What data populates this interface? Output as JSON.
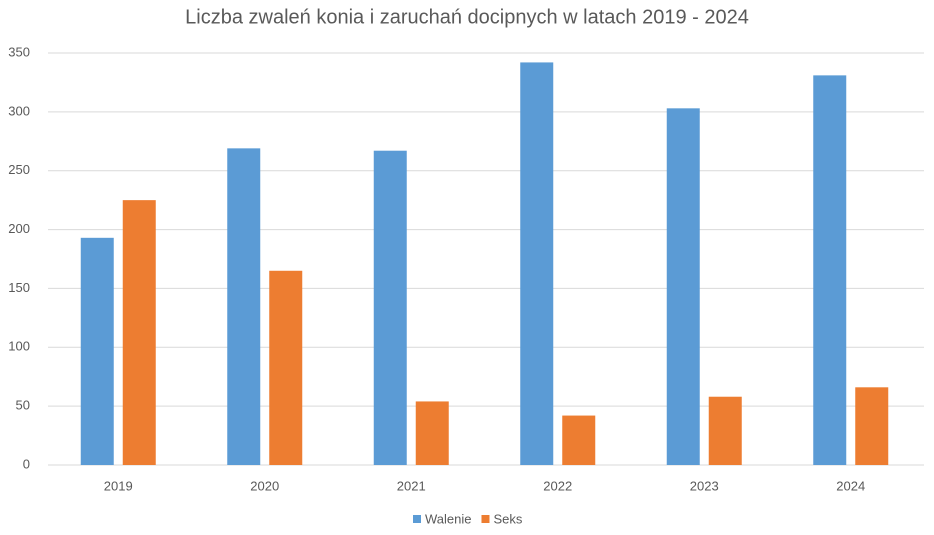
{
  "chart_data": {
    "type": "bar",
    "title": "Liczba zwaleń konia i zaruchań docipnych w latach 2019 - 2024",
    "categories": [
      "2019",
      "2020",
      "2021",
      "2022",
      "2023",
      "2024"
    ],
    "series": [
      {
        "name": "Walenie",
        "color": "#5b9bd5",
        "values": [
          193,
          269,
          267,
          342,
          303,
          331
        ]
      },
      {
        "name": "Seks",
        "color": "#ed7d31",
        "values": [
          225,
          165,
          54,
          42,
          58,
          66
        ]
      }
    ],
    "ylim": [
      0,
      350
    ],
    "yticks": [
      0,
      50,
      100,
      150,
      200,
      250,
      300,
      350
    ],
    "grid": true,
    "legend": "bottom"
  }
}
